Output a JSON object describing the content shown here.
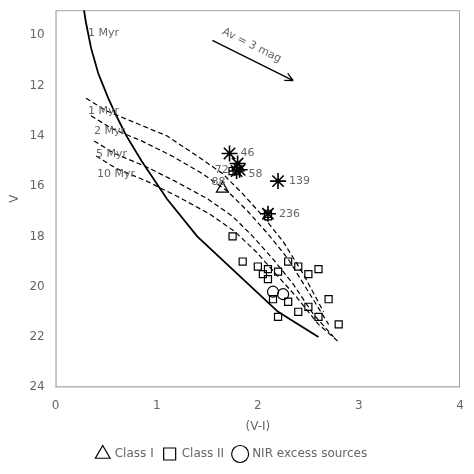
{
  "chart_data": {
    "type": "scatter",
    "xlabel": "(V-I)",
    "ylabel": "V",
    "xlim": [
      0.0,
      4.0
    ],
    "ylim": [
      24,
      9
    ],
    "xticks": [
      0,
      1,
      2,
      3,
      4
    ],
    "yticks": [
      10,
      12,
      14,
      16,
      18,
      20,
      22,
      24
    ],
    "grid": false,
    "legend": "bottom",
    "series": [
      {
        "type": "line",
        "line_style": "solid",
        "color": "#000000",
        "x": [
          0.28,
          0.3,
          0.35,
          0.42,
          0.52,
          0.6,
          0.7,
          0.85,
          1.1,
          1.4,
          1.8,
          2.2,
          2.6
        ],
        "values": [
          9.0,
          9.5,
          10.5,
          11.5,
          12.5,
          13.2,
          14.0,
          15.0,
          16.5,
          18.0,
          19.5,
          21.0,
          22.0
        ]
      },
      {
        "type": "line",
        "line_style": "dashed",
        "color": "#000000",
        "x": [
          0.3,
          0.5,
          0.8,
          1.1,
          1.4,
          1.65,
          1.85,
          2.05,
          2.25,
          2.45,
          2.65
        ],
        "values": [
          12.5,
          13.0,
          13.5,
          14.0,
          14.8,
          15.5,
          16.3,
          17.2,
          18.2,
          19.5,
          21.0
        ]
      },
      {
        "type": "line",
        "line_style": "dashed",
        "color": "#000000",
        "x": [
          0.35,
          0.55,
          0.85,
          1.15,
          1.45,
          1.7,
          1.9,
          2.1,
          2.3,
          2.5,
          2.7
        ],
        "values": [
          13.2,
          13.7,
          14.2,
          14.8,
          15.5,
          16.2,
          17.0,
          17.9,
          18.9,
          20.2,
          21.5
        ]
      },
      {
        "type": "line",
        "line_style": "dashed",
        "color": "#000000",
        "x": [
          0.38,
          0.58,
          0.88,
          1.18,
          1.5,
          1.75,
          1.95,
          2.15,
          2.35,
          2.55,
          2.75
        ],
        "values": [
          14.2,
          14.7,
          15.2,
          15.8,
          16.5,
          17.2,
          18.0,
          18.9,
          19.9,
          21.1,
          22.0
        ]
      },
      {
        "type": "line",
        "line_style": "dashed",
        "color": "#000000",
        "x": [
          0.4,
          0.6,
          0.9,
          1.2,
          1.52,
          1.77,
          1.98,
          2.18,
          2.38,
          2.6,
          2.8
        ],
        "values": [
          14.8,
          15.3,
          15.8,
          16.4,
          17.1,
          17.8,
          18.6,
          19.5,
          20.4,
          21.5,
          22.2
        ]
      },
      {
        "name": "Class I",
        "type": "scatter",
        "marker": "triangle",
        "color": "#000000",
        "x": [
          1.65
        ],
        "values": [
          16.1
        ]
      },
      {
        "name": "Class II",
        "type": "scatter",
        "marker": "square",
        "color": "#000000",
        "x": [
          1.75,
          2.1,
          1.75,
          1.85,
          2.0,
          2.05,
          2.1,
          2.1,
          2.2,
          2.3,
          2.4,
          2.5,
          2.6,
          2.7,
          2.2,
          2.4,
          2.5,
          2.6,
          2.8,
          2.15,
          2.3
        ],
        "values": [
          15.4,
          17.2,
          18.0,
          19.0,
          19.2,
          19.5,
          19.3,
          19.7,
          19.4,
          19.0,
          19.2,
          19.5,
          19.3,
          20.5,
          21.2,
          21.0,
          20.8,
          21.2,
          21.5,
          20.5,
          20.6
        ]
      },
      {
        "name": "NIR excess sources",
        "type": "scatter",
        "marker": "circle",
        "color": "#000000",
        "x": [
          2.15,
          2.25
        ],
        "values": [
          20.2,
          20.3
        ]
      },
      {
        "type": "scatter",
        "marker": "star",
        "color": "#000000",
        "x": [
          1.72,
          1.8,
          1.82,
          1.79,
          2.2,
          2.1
        ],
        "values": [
          14.7,
          15.1,
          15.35,
          15.4,
          15.8,
          17.1
        ],
        "labels": [
          "46",
          "58",
          "72",
          "88",
          "139",
          "236"
        ]
      },
      {
        "type": "scatter",
        "marker": "square",
        "color": "#000000",
        "x": [
          1.79,
          2.1
        ],
        "values": [
          15.4,
          17.1
        ]
      }
    ],
    "annotations": [
      {
        "text": "1 Myr",
        "x": 0.32,
        "y": 9.7
      },
      {
        "text": "1 Myr",
        "x": 0.32,
        "y": 12.8
      },
      {
        "text": "2 Myr",
        "x": 0.38,
        "y": 13.6
      },
      {
        "text": "5 Myr",
        "x": 0.4,
        "y": 14.5
      },
      {
        "text": "10 Myr",
        "x": 0.41,
        "y": 15.3
      },
      {
        "text": "Av = 3 mag",
        "x": 1.62,
        "y": 10.1,
        "arrow_from": [
          1.55,
          10.2
        ],
        "arrow_to": [
          2.35,
          11.8
        ]
      }
    ]
  }
}
